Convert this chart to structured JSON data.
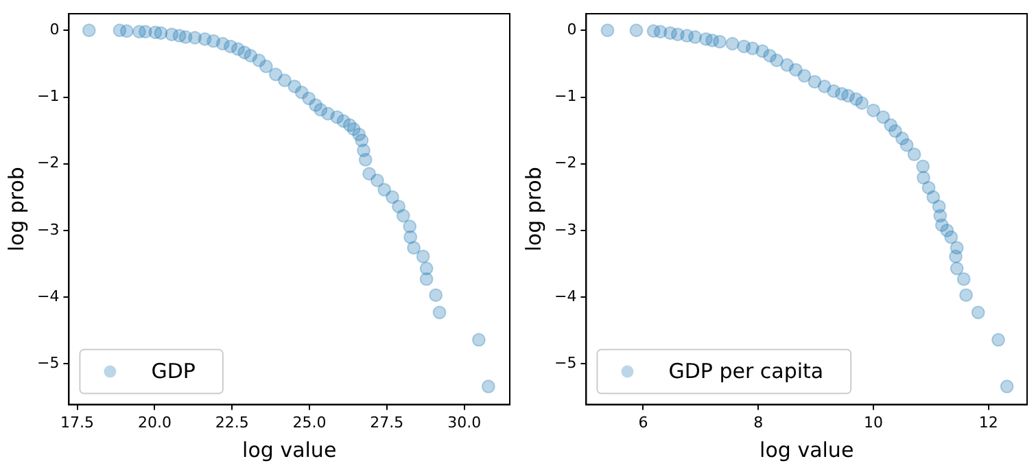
{
  "chart_data": [
    {
      "type": "scatter",
      "xlabel": "log value",
      "ylabel": "log prob",
      "legend": "bottom left",
      "marker": "circle",
      "xlim": [
        17.23,
        31.47
      ],
      "ylim": [
        -5.61,
        0.25
      ],
      "xticks": [
        {
          "value": 17.5,
          "label": "17.5"
        },
        {
          "value": 20,
          "label": "20.0"
        },
        {
          "value": 22.5,
          "label": "22.5"
        },
        {
          "value": 25,
          "label": "25.0"
        },
        {
          "value": 27.5,
          "label": "27.5"
        },
        {
          "value": 30,
          "label": "30.0"
        }
      ],
      "yticks": [
        {
          "value": 0,
          "label": "0"
        },
        {
          "value": -1,
          "label": "−1"
        },
        {
          "value": -2,
          "label": "−2"
        },
        {
          "value": -3,
          "label": "−3"
        },
        {
          "value": -4,
          "label": "−4"
        },
        {
          "value": -5,
          "label": "−5"
        }
      ],
      "series": [
        {
          "name": "GDP",
          "color": "#1f77b4",
          "x": [
            17.88,
            18.87,
            19.1,
            19.5,
            19.7,
            20.02,
            20.2,
            20.55,
            20.8,
            21.0,
            21.3,
            21.62,
            21.9,
            22.2,
            22.45,
            22.69,
            22.9,
            23.1,
            23.37,
            23.6,
            23.91,
            24.2,
            24.52,
            24.75,
            24.98,
            25.2,
            25.36,
            25.6,
            25.89,
            26.1,
            26.3,
            26.43,
            26.6,
            26.69,
            26.75,
            26.81,
            26.93,
            27.19,
            27.42,
            27.68,
            27.88,
            28.03,
            28.24,
            28.26,
            28.37,
            28.67,
            28.78,
            28.78,
            29.08,
            29.2,
            30.47,
            30.78
          ],
          "values": [
            0,
            0,
            -0.01,
            -0.02,
            -0.02,
            -0.03,
            -0.04,
            -0.06,
            -0.08,
            -0.1,
            -0.11,
            -0.13,
            -0.16,
            -0.2,
            -0.24,
            -0.28,
            -0.33,
            -0.38,
            -0.45,
            -0.54,
            -0.66,
            -0.75,
            -0.84,
            -0.93,
            -1.02,
            -1.12,
            -1.19,
            -1.25,
            -1.3,
            -1.36,
            -1.42,
            -1.48,
            -1.56,
            -1.65,
            -1.8,
            -1.94,
            -2.15,
            -2.25,
            -2.39,
            -2.5,
            -2.64,
            -2.78,
            -2.94,
            -3.1,
            -3.26,
            -3.39,
            -3.57,
            -3.73,
            -3.97,
            -4.23,
            -4.64,
            -5.34
          ]
        }
      ]
    },
    {
      "type": "scatter",
      "xlabel": "log value",
      "ylabel": "log prob",
      "legend": "bottom left",
      "marker": "circle",
      "xlim": [
        5.01,
        12.67
      ],
      "ylim": [
        -5.61,
        0.25
      ],
      "xticks": [
        {
          "value": 6,
          "label": "6"
        },
        {
          "value": 8,
          "label": "8"
        },
        {
          "value": 10,
          "label": "10"
        },
        {
          "value": 12,
          "label": "12"
        }
      ],
      "yticks": [
        {
          "value": 0,
          "label": "0"
        },
        {
          "value": -1,
          "label": "−1"
        },
        {
          "value": -2,
          "label": "−2"
        },
        {
          "value": -3,
          "label": "−3"
        },
        {
          "value": -4,
          "label": "−4"
        },
        {
          "value": -5,
          "label": "−5"
        }
      ],
      "series": [
        {
          "name": "GDP per capita",
          "color": "#1f77b4",
          "x": [
            5.38,
            5.88,
            6.18,
            6.3,
            6.47,
            6.6,
            6.76,
            6.9,
            7.09,
            7.2,
            7.33,
            7.55,
            7.75,
            7.9,
            8.07,
            8.2,
            8.32,
            8.5,
            8.65,
            8.8,
            8.98,
            9.15,
            9.31,
            9.45,
            9.56,
            9.7,
            9.8,
            10.0,
            10.17,
            10.3,
            10.38,
            10.5,
            10.58,
            10.71,
            10.86,
            10.87,
            10.96,
            11.04,
            11.14,
            11.16,
            11.19,
            11.28,
            11.35,
            11.45,
            11.43,
            11.45,
            11.57,
            11.61,
            11.82,
            12.17,
            12.32
          ],
          "values": [
            0,
            0,
            -0.01,
            -0.02,
            -0.04,
            -0.06,
            -0.08,
            -0.1,
            -0.13,
            -0.15,
            -0.17,
            -0.2,
            -0.24,
            -0.27,
            -0.31,
            -0.38,
            -0.45,
            -0.52,
            -0.59,
            -0.68,
            -0.77,
            -0.84,
            -0.91,
            -0.95,
            -0.98,
            -1.03,
            -1.09,
            -1.2,
            -1.3,
            -1.42,
            -1.51,
            -1.62,
            -1.72,
            -1.86,
            -2.04,
            -2.21,
            -2.36,
            -2.5,
            -2.64,
            -2.78,
            -2.92,
            -3.0,
            -3.1,
            -3.57,
            -3.39,
            -3.26,
            -3.73,
            -3.97,
            -4.23,
            -4.64,
            -5.34
          ]
        }
      ]
    }
  ]
}
